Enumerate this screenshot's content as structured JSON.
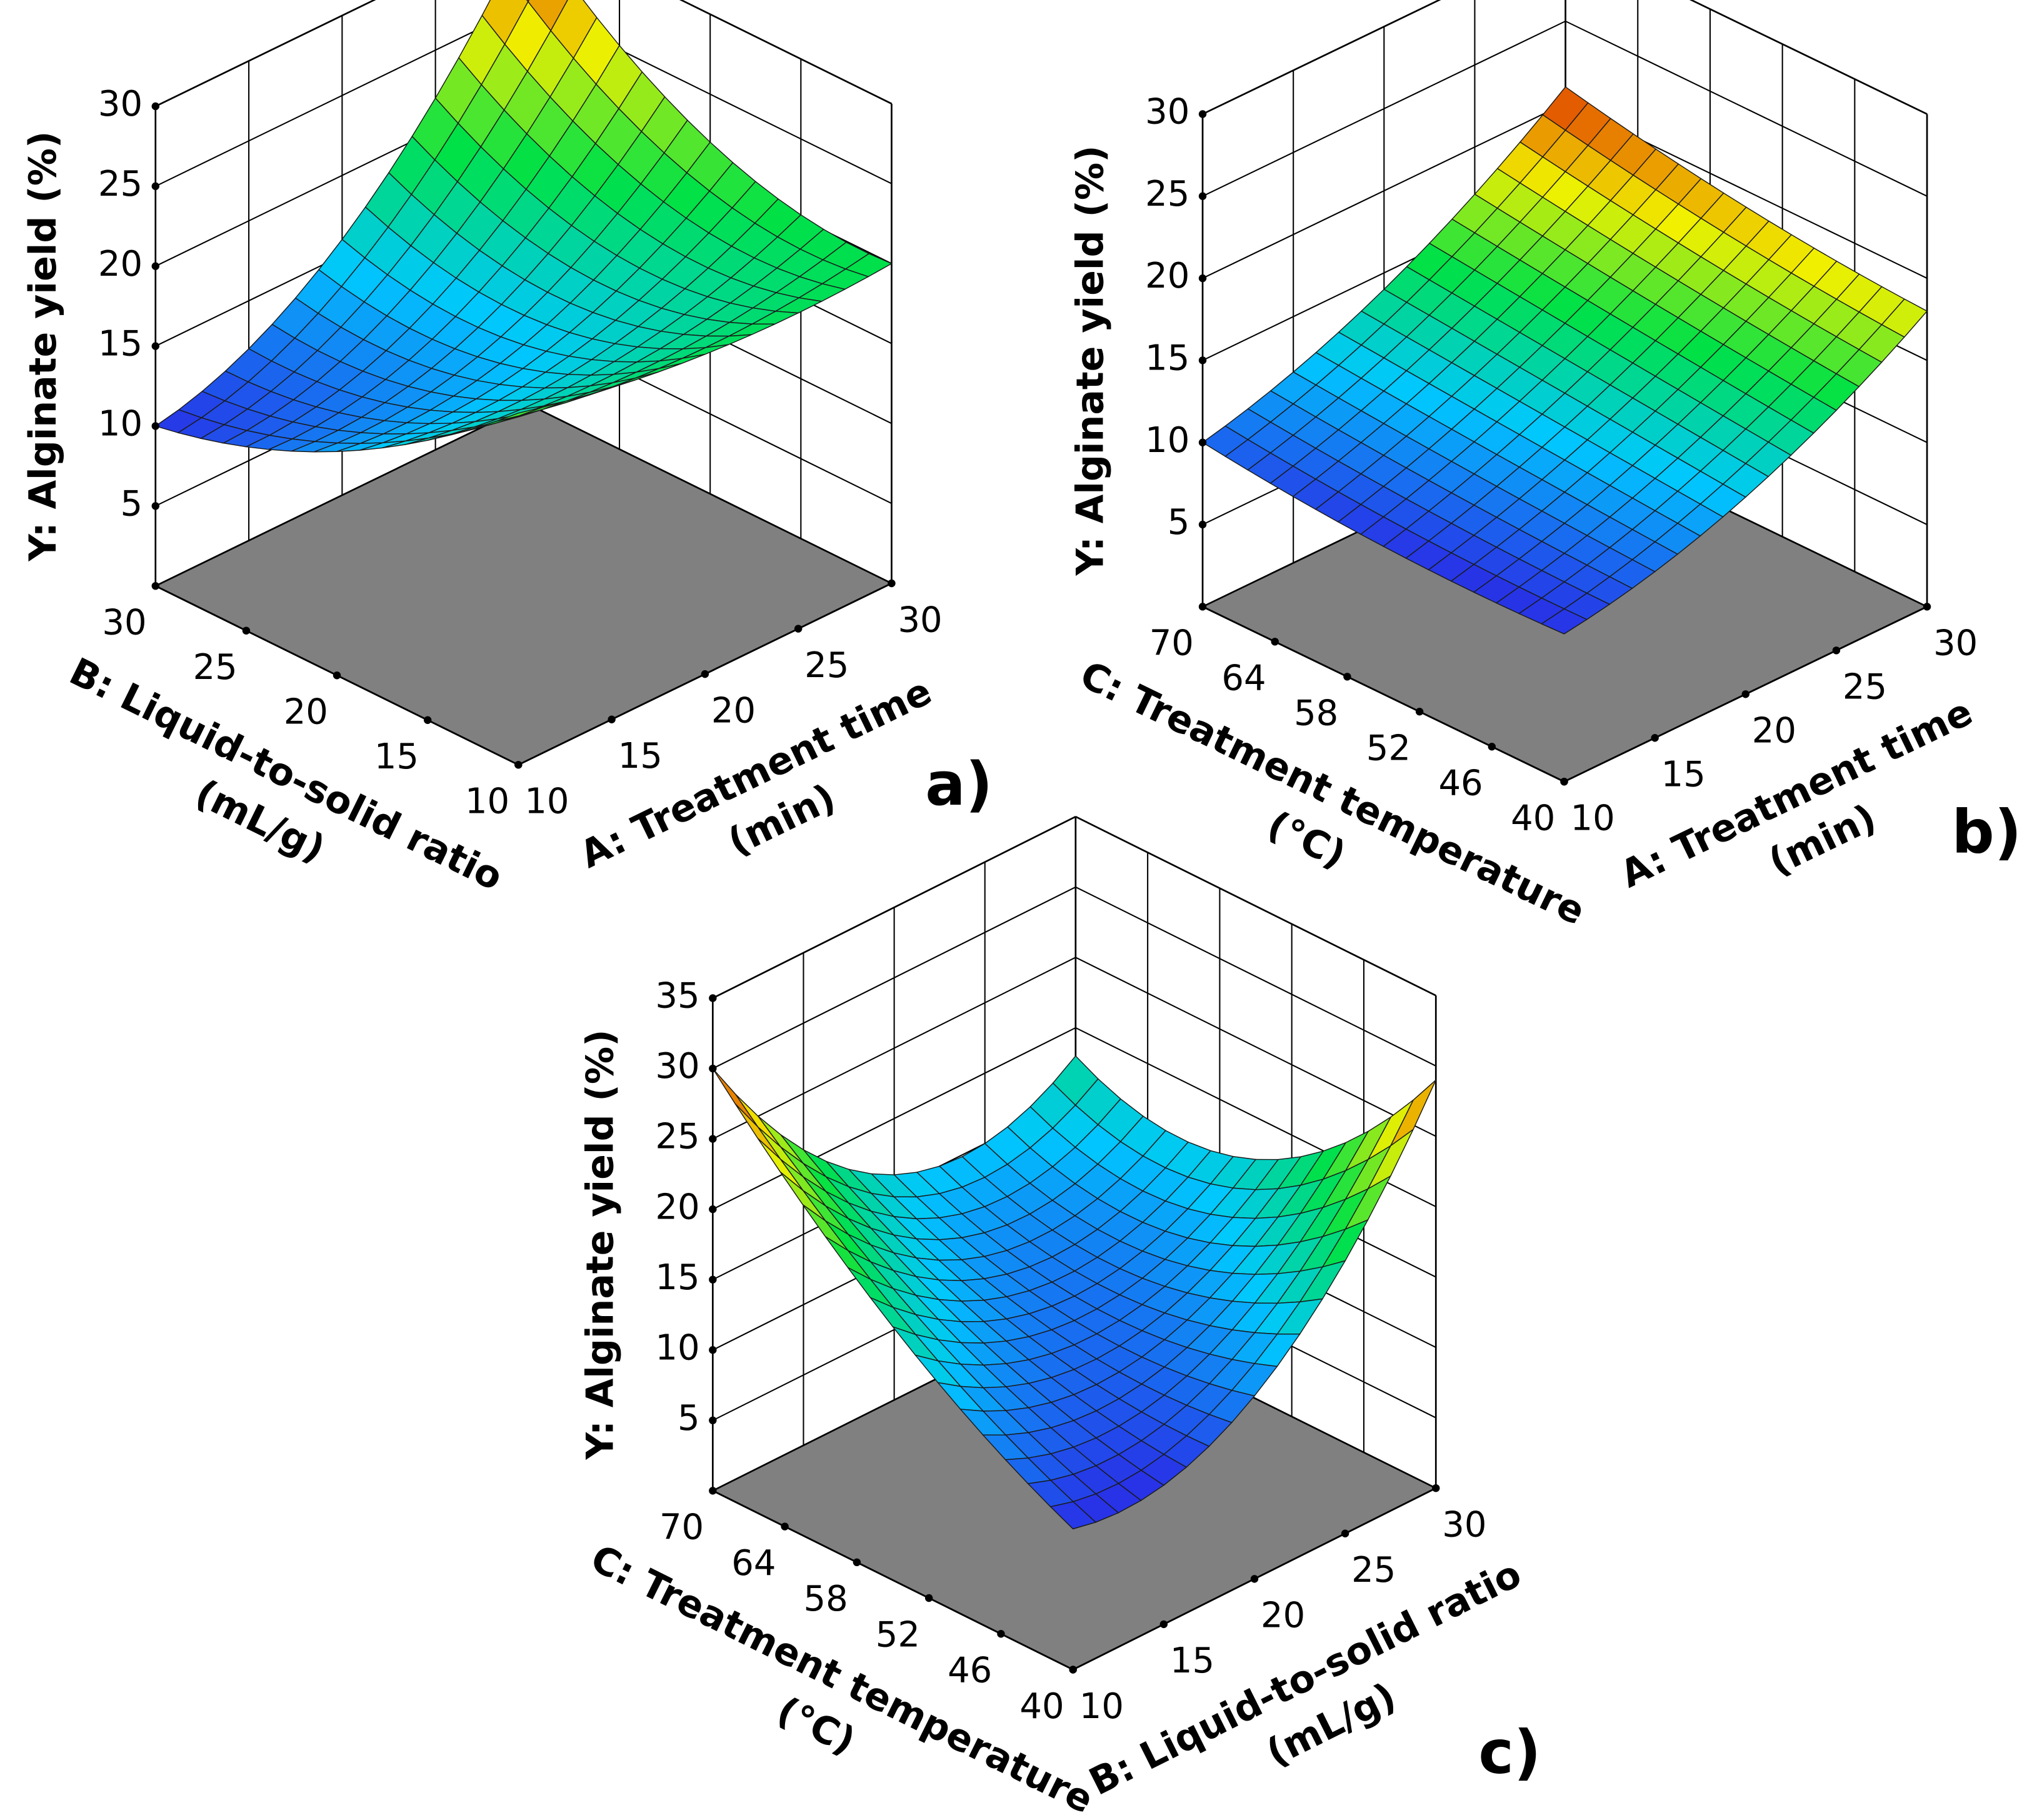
{
  "chart_data": [
    {
      "type": "surface3d",
      "panel_label": "a)",
      "xlabel": [
        "A: Treatment time",
        "(min)"
      ],
      "ylabel": [
        "B: Liquid-to-solid ratio",
        "(mL/g)"
      ],
      "zlabel": "Y: Alginate yield (%)",
      "x": [
        10,
        20,
        30
      ],
      "y": [
        10,
        20,
        30
      ],
      "z": [
        [
          22,
          14,
          10
        ],
        [
          20,
          15,
          16
        ],
        [
          20,
          22,
          30
        ]
      ],
      "xlim": [
        10,
        30
      ],
      "ylim": [
        10,
        30
      ],
      "zlim": [
        0,
        30
      ],
      "xticks": [
        10,
        15,
        20,
        25,
        30
      ],
      "yticks": [
        10,
        15,
        20,
        25,
        30
      ],
      "zticks": [
        5,
        10,
        15,
        20,
        25,
        30
      ],
      "floor_color": "#808080"
    },
    {
      "type": "surface3d",
      "panel_label": "b)",
      "xlabel": [
        "A: Treatment time",
        "(min)"
      ],
      "ylabel": [
        "C: Treatment temperature",
        "(°C)"
      ],
      "zlabel": "Y: Alginate yield (%)",
      "x": [
        10,
        20,
        30
      ],
      "y": [
        40,
        55,
        70
      ],
      "z": [
        [
          9,
          9,
          10
        ],
        [
          12,
          13,
          14
        ],
        [
          18,
          19,
          21
        ]
      ],
      "xlim": [
        10,
        30
      ],
      "ylim": [
        40,
        70
      ],
      "zlim": [
        0,
        30
      ],
      "xticks": [
        10,
        15,
        20,
        25,
        30
      ],
      "yticks": [
        40,
        46,
        52,
        58,
        64,
        70
      ],
      "zticks": [
        5,
        10,
        15,
        20,
        25,
        30
      ],
      "floor_color": "#808080"
    },
    {
      "type": "surface3d",
      "panel_label": "c)",
      "xlabel": [
        "B: Liquid-to-solid ratio",
        "(mL/g)"
      ],
      "ylabel": [
        "C: Treatment temperature",
        "(°C)"
      ],
      "zlabel": "Y: Alginate yield (%)",
      "x": [
        10,
        20,
        30
      ],
      "y": [
        40,
        55,
        70
      ],
      "z": [
        [
          10,
          18,
          30
        ],
        [
          13,
          12,
          16
        ],
        [
          29,
          17,
          18
        ]
      ],
      "xlim": [
        10,
        30
      ],
      "ylim": [
        40,
        70
      ],
      "zlim": [
        0,
        35
      ],
      "xticks": [
        10,
        15,
        20,
        25,
        30
      ],
      "yticks": [
        40,
        46,
        52,
        58,
        64,
        70
      ],
      "zticks": [
        5,
        10,
        15,
        20,
        25,
        30,
        35
      ],
      "floor_color": "#808080"
    }
  ]
}
